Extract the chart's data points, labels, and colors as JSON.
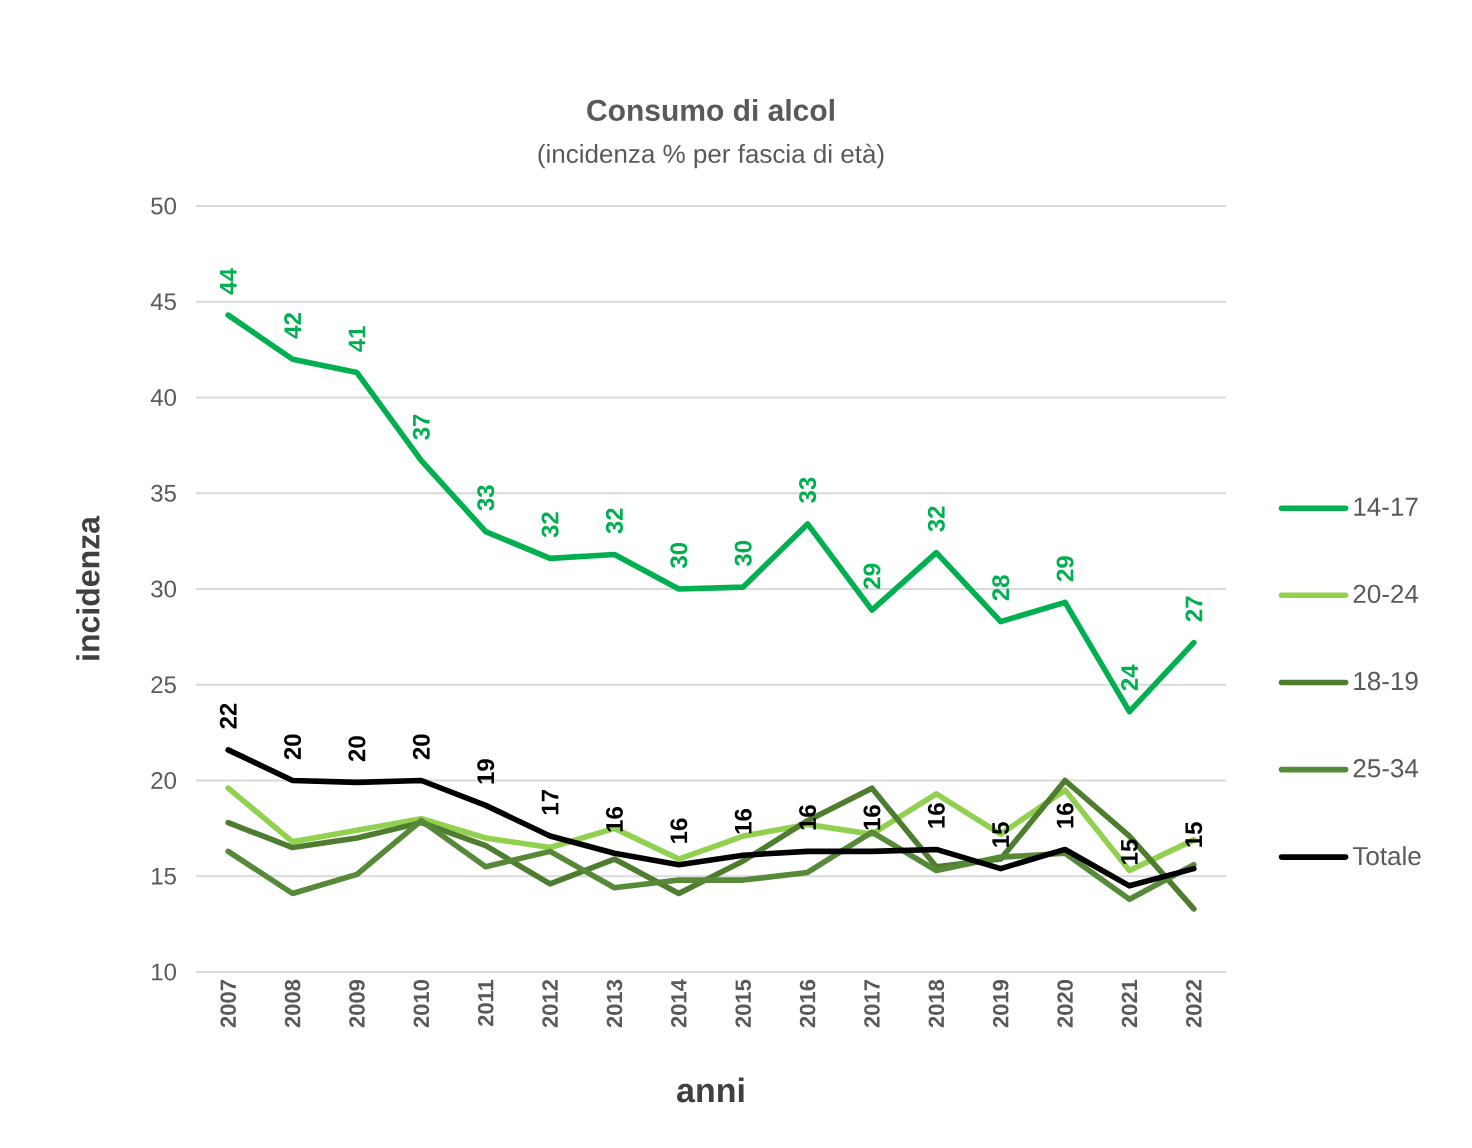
{
  "chart_data": {
    "type": "line",
    "title": "Consumo di alcol",
    "subtitle": "(incidenza % per fascia di età)",
    "xlabel": "anni",
    "ylabel": "incidenza",
    "categories": [
      "2007",
      "2008",
      "2009",
      "2010",
      "2011",
      "2012",
      "2013",
      "2014",
      "2015",
      "2016",
      "2017",
      "2018",
      "2019",
      "2020",
      "2021",
      "2022"
    ],
    "series": [
      {
        "name": "14-17",
        "color": "#00b050",
        "values": [
          44.3,
          42.0,
          41.3,
          36.7,
          33.0,
          31.6,
          31.8,
          30.0,
          30.1,
          33.4,
          28.9,
          31.9,
          28.3,
          29.3,
          23.6,
          27.2
        ],
        "value_labels": [
          "44",
          "42",
          "41",
          "37",
          "33",
          "32",
          "32",
          "30",
          "30",
          "33",
          "29",
          "32",
          "28",
          "29",
          "24",
          "27"
        ]
      },
      {
        "name": "20-24",
        "color": "#92d050",
        "values": [
          19.6,
          16.8,
          17.4,
          18.0,
          17.0,
          16.5,
          17.5,
          15.9,
          17.1,
          17.7,
          17.2,
          19.3,
          17.2,
          19.5,
          15.3,
          16.9
        ]
      },
      {
        "name": "18-19",
        "color": "#4f7d30",
        "values": [
          17.8,
          16.5,
          17.0,
          17.8,
          16.6,
          14.6,
          15.9,
          14.1,
          15.8,
          17.9,
          19.6,
          15.5,
          15.9,
          20.0,
          17.1,
          13.3
        ]
      },
      {
        "name": "25-34",
        "color": "#568a38",
        "values": [
          16.3,
          14.1,
          15.1,
          17.9,
          15.5,
          16.3,
          14.4,
          14.8,
          14.8,
          15.2,
          17.3,
          15.3,
          16.0,
          16.2,
          13.8,
          15.6
        ]
      },
      {
        "name": "Totale",
        "color": "#000000",
        "values": [
          21.6,
          20.0,
          19.9,
          20.0,
          18.7,
          17.1,
          16.2,
          15.6,
          16.1,
          16.3,
          16.3,
          16.4,
          15.4,
          16.4,
          14.5,
          15.4
        ],
        "value_labels": [
          "22",
          "20",
          "20",
          "20",
          "19",
          "17",
          "16",
          "16",
          "16",
          "16",
          "16",
          "16",
          "15",
          "16",
          "15",
          "15"
        ]
      }
    ],
    "ylim": [
      10,
      50
    ],
    "yticks": [
      10,
      15,
      20,
      25,
      30,
      35,
      40,
      45,
      50
    ],
    "grid": "y",
    "legend": "right"
  }
}
